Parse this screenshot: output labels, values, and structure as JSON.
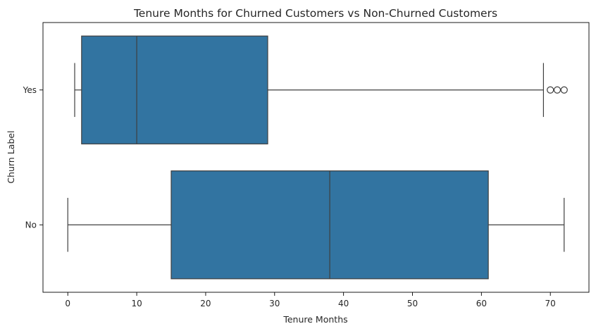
{
  "chart_data": {
    "type": "boxplot",
    "orientation": "horizontal",
    "title": "Tenure Months for Churned Customers vs Non-Churned Customers",
    "xlabel": "Tenure Months",
    "ylabel": "Churn Label",
    "xlim": [
      -3.6,
      75.6
    ],
    "xticks": [
      0,
      10,
      20,
      30,
      40,
      50,
      60,
      70
    ],
    "categories": [
      "Yes",
      "No"
    ],
    "boxes": [
      {
        "category": "Yes",
        "whisker_low": 1,
        "q1": 2,
        "median": 10,
        "q3": 29,
        "whisker_high": 69,
        "outliers": [
          70,
          71,
          72
        ]
      },
      {
        "category": "No",
        "whisker_low": 0,
        "q1": 15,
        "median": 38,
        "q3": 61,
        "whisker_high": 72,
        "outliers": []
      }
    ],
    "colors": {
      "box_fill": "#3274a1",
      "line": "#3f3f3f",
      "axis": "#000000"
    },
    "grid": false,
    "legend": "none"
  }
}
